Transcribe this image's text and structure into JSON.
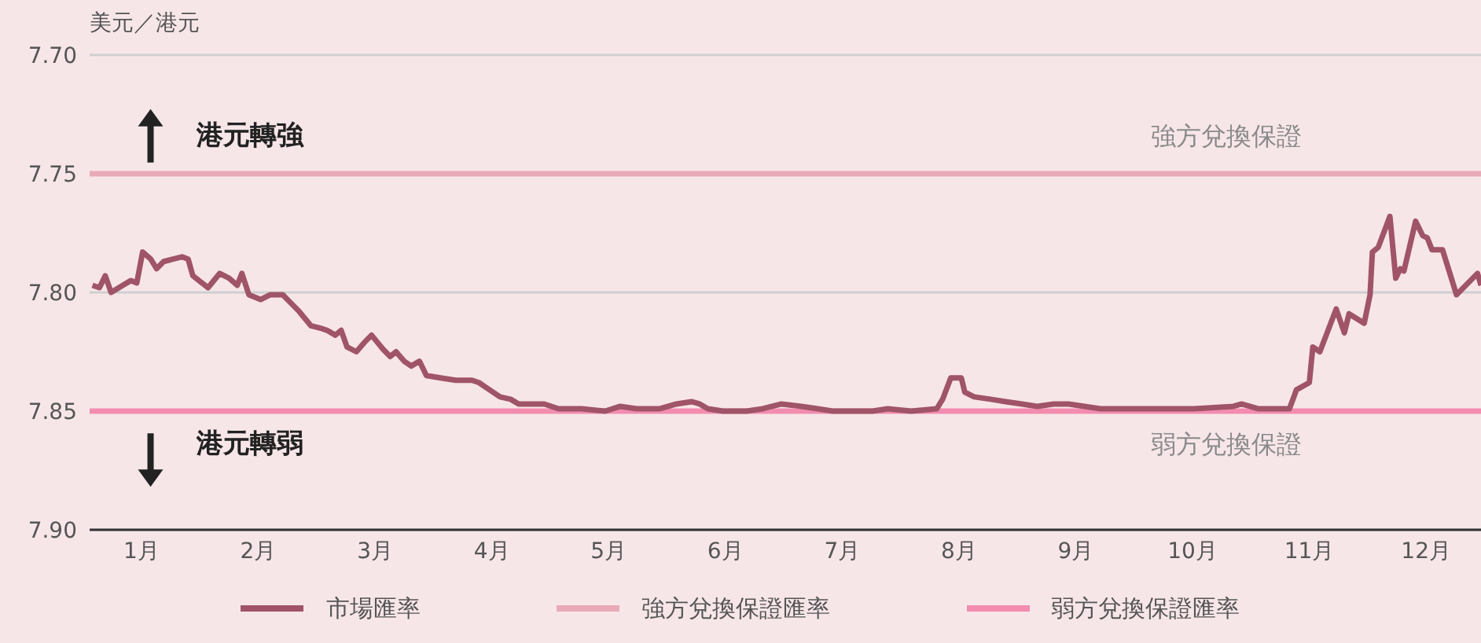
{
  "chart_data": {
    "type": "line",
    "ylabel": "美元／港元",
    "xlim": [
      0.556,
      12.47
    ],
    "xticks": [
      {
        "value": 1,
        "label": "1月"
      },
      {
        "value": 2,
        "label": "2月"
      },
      {
        "value": 3,
        "label": "3月"
      },
      {
        "value": 4,
        "label": "4月"
      },
      {
        "value": 5,
        "label": "5月"
      },
      {
        "value": 6,
        "label": "6月"
      },
      {
        "value": 7,
        "label": "7月"
      },
      {
        "value": 8,
        "label": "8月"
      },
      {
        "value": 9,
        "label": "9月"
      },
      {
        "value": 10,
        "label": "10月"
      },
      {
        "value": 11,
        "label": "11月"
      },
      {
        "value": 12,
        "label": "12月"
      }
    ],
    "ylim": [
      7.9,
      7.7
    ],
    "yticks": [
      {
        "value": 7.7,
        "label": "7.70"
      },
      7.75,
      {
        "value": 7.8,
        "label": "7.80"
      },
      7.85,
      {
        "value": 7.9,
        "label": "7.90"
      }
    ],
    "grid": "y",
    "legend": "bottom",
    "marker": "none",
    "line_style": "solid",
    "series": [
      {
        "name": "市場匯率",
        "color": "#a05468",
        "x": [
          0.58,
          0.64,
          0.69,
          0.74,
          0.84,
          0.91,
          0.96,
          1.01,
          1.08,
          1.13,
          1.19,
          1.27,
          1.35,
          1.4,
          1.44,
          1.57,
          1.67,
          1.75,
          1.82,
          1.86,
          1.92,
          2.02,
          2.1,
          2.21,
          2.29,
          2.35,
          2.45,
          2.53,
          2.59,
          2.66,
          2.71,
          2.76,
          2.84,
          2.91,
          2.97,
          3.07,
          3.13,
          3.18,
          3.25,
          3.31,
          3.38,
          3.44,
          3.56,
          3.69,
          3.83,
          3.89,
          3.95,
          4.07,
          4.16,
          4.23,
          4.36,
          4.45,
          4.57,
          4.77,
          4.97,
          5.1,
          5.24,
          5.44,
          5.58,
          5.71,
          5.78,
          5.85,
          5.98,
          6.18,
          6.32,
          6.48,
          6.65,
          6.79,
          6.92,
          7.12,
          7.26,
          7.39,
          7.59,
          7.81,
          7.86,
          7.93,
          8.02,
          8.05,
          8.13,
          8.27,
          8.4,
          8.54,
          8.67,
          8.81,
          8.94,
          9.21,
          9.61,
          10.02,
          10.35,
          10.42,
          10.56,
          10.83,
          10.89,
          11.0,
          11.03,
          11.09,
          11.23,
          11.3,
          11.34,
          11.47,
          11.52,
          11.54,
          11.59,
          11.69,
          11.74,
          11.78,
          11.81,
          11.91,
          11.97,
          12.01,
          12.05,
          12.14,
          12.21,
          12.26,
          12.44,
          12.47
        ],
        "values": [
          7.797,
          7.798,
          7.793,
          7.8,
          7.797,
          7.795,
          7.796,
          7.783,
          7.786,
          7.79,
          7.787,
          7.786,
          7.785,
          7.786,
          7.793,
          7.798,
          7.792,
          7.794,
          7.797,
          7.792,
          7.801,
          7.803,
          7.801,
          7.801,
          7.805,
          7.808,
          7.814,
          7.815,
          7.816,
          7.818,
          7.816,
          7.823,
          7.825,
          7.821,
          7.818,
          7.824,
          7.827,
          7.825,
          7.829,
          7.831,
          7.829,
          7.835,
          7.836,
          7.837,
          7.837,
          7.838,
          7.84,
          7.844,
          7.845,
          7.847,
          7.847,
          7.847,
          7.849,
          7.849,
          7.85,
          7.848,
          7.849,
          7.849,
          7.847,
          7.846,
          7.847,
          7.849,
          7.85,
          7.85,
          7.849,
          7.847,
          7.848,
          7.849,
          7.85,
          7.85,
          7.85,
          7.849,
          7.85,
          7.849,
          7.845,
          7.836,
          7.836,
          7.842,
          7.844,
          7.845,
          7.846,
          7.847,
          7.848,
          7.847,
          7.847,
          7.849,
          7.849,
          7.849,
          7.848,
          7.847,
          7.849,
          7.849,
          7.841,
          7.838,
          7.823,
          7.825,
          7.807,
          7.817,
          7.809,
          7.813,
          7.801,
          7.783,
          7.781,
          7.768,
          7.794,
          7.79,
          7.791,
          7.77,
          7.776,
          7.777,
          7.782,
          7.782,
          7.793,
          7.801,
          7.792,
          7.797
        ]
      },
      {
        "name": "強方兌換保證匯率",
        "color": "#e9aab8",
        "x": [
          0.556,
          12.47
        ],
        "values": [
          7.75,
          7.75
        ]
      },
      {
        "name": "弱方兌換保證匯率",
        "color": "#f28db0",
        "x": [
          0.556,
          12.47
        ],
        "values": [
          7.85,
          7.85
        ]
      }
    ],
    "annotations": [
      "港元轉強",
      "強方兌換保證",
      "港元轉弱",
      "弱方兌換保證"
    ]
  }
}
